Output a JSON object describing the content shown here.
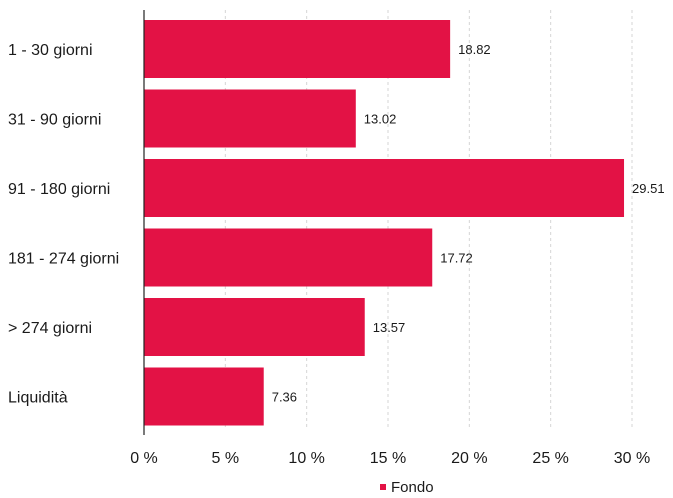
{
  "chart_data": {
    "type": "bar",
    "orientation": "horizontal",
    "categories": [
      "1 - 30 giorni",
      "31 - 90 giorni",
      "91 - 180 giorni",
      "181 - 274 giorni",
      "> 274 giorni",
      "Liquidità"
    ],
    "series": [
      {
        "name": "Fondo",
        "values": [
          18.82,
          13.02,
          29.51,
          17.72,
          13.57,
          7.36
        ],
        "color": "#E31245"
      }
    ],
    "data_labels": [
      "18.82",
      "13.02",
      "29.51",
      "17.72",
      "13.57",
      "7.36"
    ],
    "xlim": [
      0,
      30
    ],
    "xticks": [
      0,
      5,
      10,
      15,
      20,
      25,
      30
    ],
    "xtick_labels": [
      "0 %",
      "5 %",
      "10 %",
      "15 %",
      "20 %",
      "25 %",
      "30 %"
    ],
    "grid": "vertical dashed",
    "legend": "bottom-center",
    "title": "",
    "xlabel": "",
    "ylabel": ""
  }
}
